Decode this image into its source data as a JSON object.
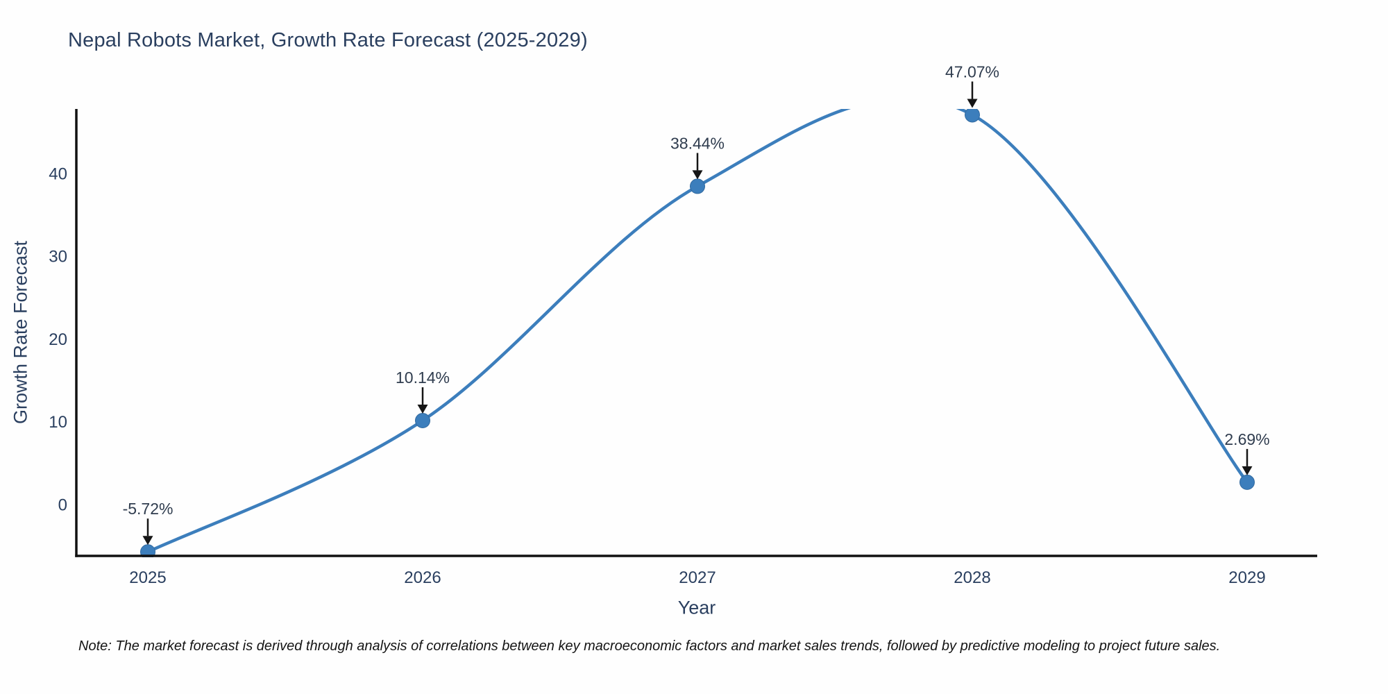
{
  "title": "Nepal Robots Market, Growth Rate Forecast (2025-2029)",
  "note": "Note: The market forecast is derived through analysis of correlations between key macroeconomic factors and market sales trends, followed by predictive modeling to project future sales.",
  "colors": {
    "line": "#3c7ebc",
    "marker": "#3c7ebc",
    "marker_edge": "#31699f",
    "axis": "#111111",
    "tick_text": "#2a3f5f",
    "annotation_text": "#2f3c4e",
    "arrow": "#151515",
    "background": "#fefefe"
  },
  "chart_data": {
    "type": "line",
    "title": "Nepal Robots Market, Growth Rate Forecast (2025-2029)",
    "xlabel": "Year",
    "ylabel": "Growth Rate Forecast",
    "x": [
      2025,
      2026,
      2027,
      2028,
      2029
    ],
    "values": [
      -5.72,
      10.14,
      38.44,
      47.07,
      2.69
    ],
    "point_labels": [
      "-5.72%",
      "10.14%",
      "38.44%",
      "47.07%",
      "2.69%"
    ],
    "series_name": "Growth Rate Forecast",
    "y_ticks": [
      0,
      10,
      20,
      30,
      40
    ],
    "ylim": [
      -6.4,
      47.8
    ],
    "line_shape": "spline",
    "grid": false,
    "legend_visible": false,
    "annotations_have_arrows": true
  }
}
